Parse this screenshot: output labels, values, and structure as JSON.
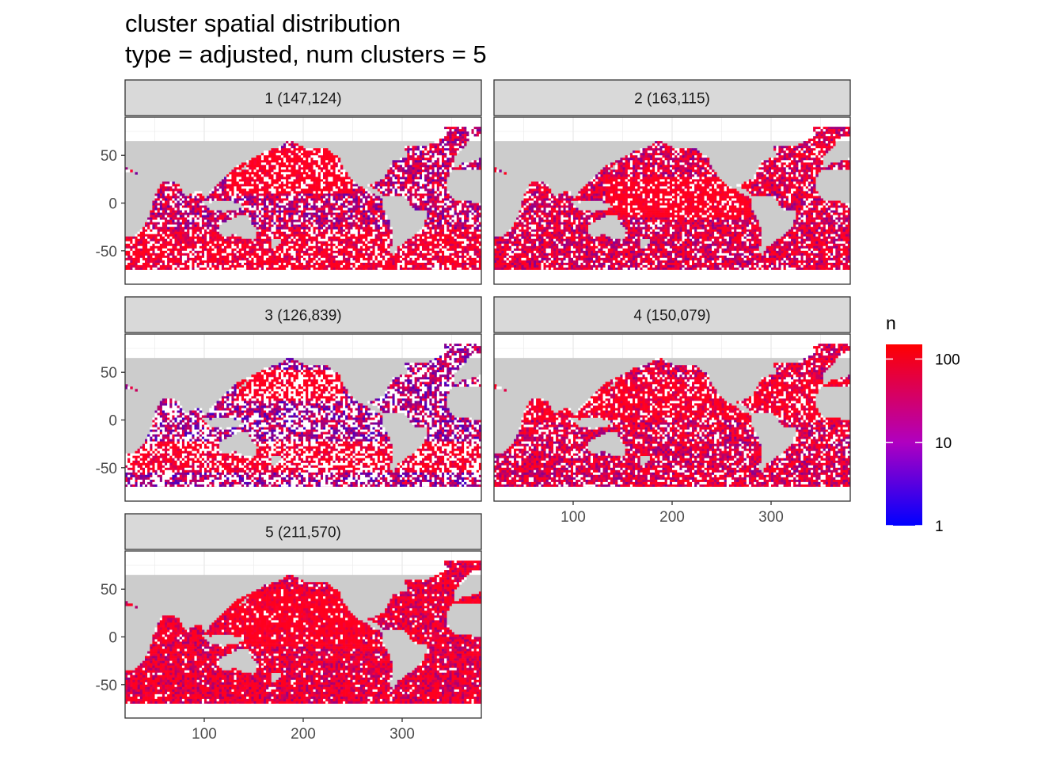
{
  "chart_data": {
    "type": "heatmap",
    "title": "cluster spatial distribution",
    "subtitle": "type = adjusted, num clusters = 5",
    "xlabel": "",
    "ylabel": "",
    "xlim": [
      20,
      380
    ],
    "ylim": [
      -85,
      90
    ],
    "x_ticks": [
      100,
      200,
      300
    ],
    "y_ticks": [
      -50,
      0,
      50
    ],
    "x_tick_labels": [
      "100",
      "200",
      "300"
    ],
    "y_tick_labels": [
      "-50",
      "0",
      "50"
    ],
    "fill_scale": {
      "name": "n",
      "transform": "log10",
      "limits": [
        1,
        150
      ],
      "breaks": [
        1,
        10,
        100
      ],
      "labels": [
        "1",
        "10",
        "100"
      ],
      "low_color": "#0000FF",
      "high_color": "#FF0000"
    },
    "facets": [
      {
        "cluster": 1,
        "count": 147124,
        "label": "1 (147,124)"
      },
      {
        "cluster": 2,
        "count": 163115,
        "label": "2 (163,115)"
      },
      {
        "cluster": 3,
        "count": 126839,
        "label": "3 (126,839)"
      },
      {
        "cluster": 4,
        "count": 150079,
        "label": "4 (150,079)"
      },
      {
        "cluster": 5,
        "count": 211570,
        "label": "5 (211,570)"
      }
    ],
    "land_color": "#CCCCCC",
    "panel_background": "#FFFFFF",
    "strip_background": "#D9D9D9",
    "grid": true,
    "legend_position": "right"
  }
}
